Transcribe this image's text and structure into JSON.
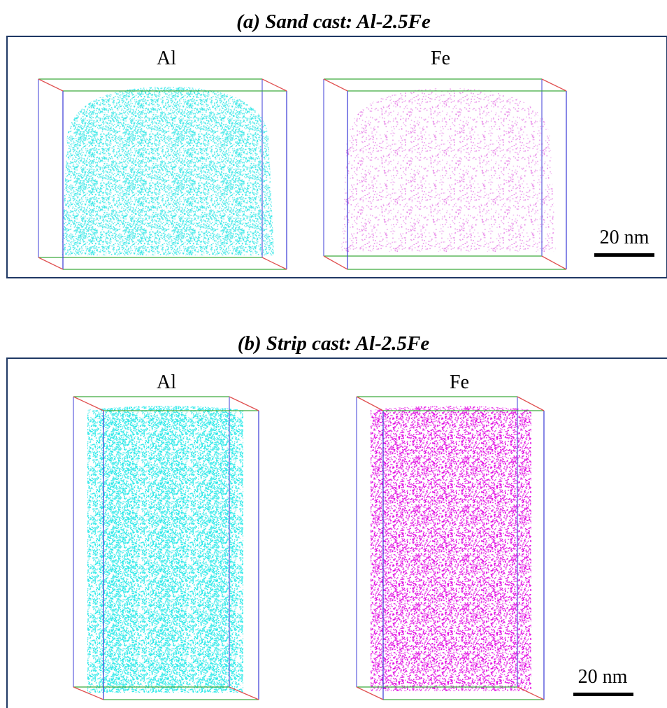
{
  "panels": [
    {
      "title": "(a) Sand cast: Al-2.5Fe",
      "maps": [
        {
          "label": "Al"
        },
        {
          "label": "Fe"
        }
      ],
      "scale_bar": "20 nm"
    },
    {
      "title": "(b) Strip cast: Al-2.5Fe",
      "maps": [
        {
          "label": "Al"
        },
        {
          "label": "Fe"
        }
      ],
      "scale_bar": "20 nm"
    }
  ]
}
